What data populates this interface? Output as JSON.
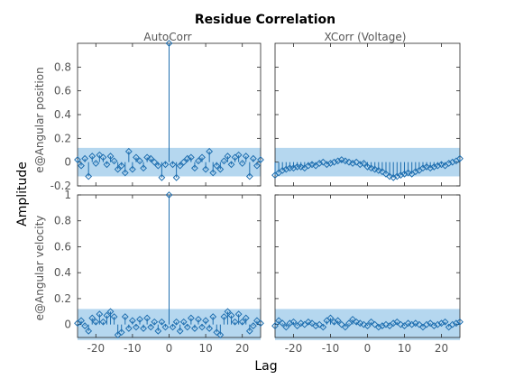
{
  "figure": {
    "title": "Residue Correlation",
    "xlabel": "Lag",
    "ylabel": "Amplitude",
    "column_titles": [
      "AutoCorr",
      "XCorr (Voltage)"
    ],
    "row_labels": [
      "e@Angular position",
      "e@Angular velocity"
    ]
  },
  "colors": {
    "stem": "#1f6fb0",
    "band": "#9ccaea",
    "axis": "#262626",
    "text_gray": "#555555"
  },
  "chart_data": [
    {
      "type": "stem",
      "name": "AutoCorr / e@Angular position",
      "x_range": [
        -25,
        25
      ],
      "y_range": [
        -0.2,
        1.0
      ],
      "xticks": [
        -20,
        -10,
        0,
        10,
        20
      ],
      "yticks": [
        -0.2,
        0,
        0.2,
        0.4,
        0.6,
        0.8
      ],
      "confidence_band": [
        -0.12,
        0.12
      ],
      "x": [
        -25,
        -24,
        -23,
        -22,
        -21,
        -20,
        -19,
        -18,
        -17,
        -16,
        -15,
        -14,
        -13,
        -12,
        -11,
        -10,
        -9,
        -8,
        -7,
        -6,
        -5,
        -4,
        -3,
        -2,
        -1,
        0,
        1,
        2,
        3,
        4,
        5,
        6,
        7,
        8,
        9,
        10,
        11,
        12,
        13,
        14,
        15,
        16,
        17,
        18,
        19,
        20,
        21,
        22,
        23,
        24,
        25
      ],
      "values": [
        0.02,
        -0.03,
        0.03,
        -0.12,
        0.05,
        -0.01,
        0.06,
        0.04,
        -0.02,
        0.05,
        0.01,
        -0.06,
        -0.03,
        -0.09,
        0.09,
        -0.06,
        0.04,
        0.01,
        -0.05,
        0.04,
        0.03,
        0.0,
        -0.03,
        -0.13,
        -0.02,
        1.0,
        -0.02,
        -0.13,
        -0.03,
        0.0,
        0.03,
        0.04,
        -0.05,
        0.01,
        0.04,
        -0.06,
        0.09,
        -0.09,
        -0.03,
        -0.06,
        0.01,
        0.05,
        -0.02,
        0.04,
        0.06,
        -0.01,
        0.05,
        -0.12,
        0.03,
        -0.03,
        0.02
      ]
    },
    {
      "type": "stem",
      "name": "XCorr (Voltage) / e@Angular position",
      "x_range": [
        -25,
        25
      ],
      "y_range": [
        -0.2,
        1.0
      ],
      "xticks": [
        -20,
        -10,
        0,
        10,
        20
      ],
      "yticks": [
        -0.2,
        0,
        0.2,
        0.4,
        0.6,
        0.8
      ],
      "confidence_band": [
        -0.12,
        0.12
      ],
      "x": [
        -25,
        -24,
        -23,
        -22,
        -21,
        -20,
        -19,
        -18,
        -17,
        -16,
        -15,
        -14,
        -13,
        -12,
        -11,
        -10,
        -9,
        -8,
        -7,
        -6,
        -5,
        -4,
        -3,
        -2,
        -1,
        0,
        1,
        2,
        3,
        4,
        5,
        6,
        7,
        8,
        9,
        10,
        11,
        12,
        13,
        14,
        15,
        16,
        17,
        18,
        19,
        20,
        21,
        22,
        23,
        24,
        25
      ],
      "values": [
        -0.11,
        -0.09,
        -0.07,
        -0.06,
        -0.05,
        -0.05,
        -0.04,
        -0.04,
        -0.05,
        -0.03,
        -0.02,
        -0.03,
        -0.01,
        0.0,
        -0.02,
        -0.01,
        0.0,
        0.01,
        0.02,
        0.01,
        0.0,
        -0.01,
        0.0,
        -0.02,
        -0.01,
        -0.04,
        -0.05,
        -0.06,
        -0.07,
        -0.08,
        -0.1,
        -0.12,
        -0.13,
        -0.12,
        -0.11,
        -0.1,
        -0.09,
        -0.1,
        -0.08,
        -0.07,
        -0.05,
        -0.04,
        -0.05,
        -0.04,
        -0.03,
        -0.02,
        -0.03,
        -0.01,
        0.0,
        0.01,
        0.03
      ]
    },
    {
      "type": "stem",
      "name": "AutoCorr / e@Angular velocity",
      "x_range": [
        -25,
        25
      ],
      "y_range": [
        -0.1,
        1.0
      ],
      "xticks": [
        -20,
        -10,
        0,
        10,
        20
      ],
      "yticks": [
        0,
        0.2,
        0.4,
        0.6,
        0.8,
        1
      ],
      "confidence_band": [
        -0.12,
        0.12
      ],
      "x": [
        -25,
        -24,
        -23,
        -22,
        -21,
        -20,
        -19,
        -18,
        -17,
        -16,
        -15,
        -14,
        -13,
        -12,
        -11,
        -10,
        -9,
        -8,
        -7,
        -6,
        -5,
        -4,
        -3,
        -2,
        -1,
        0,
        1,
        2,
        3,
        4,
        5,
        6,
        7,
        8,
        9,
        10,
        11,
        12,
        13,
        14,
        15,
        16,
        17,
        18,
        19,
        20,
        21,
        22,
        23,
        24,
        25
      ],
      "values": [
        0.01,
        0.03,
        -0.01,
        -0.05,
        0.05,
        0.02,
        0.08,
        0.02,
        0.07,
        0.1,
        0.06,
        -0.08,
        -0.06,
        0.06,
        -0.03,
        0.03,
        -0.02,
        0.04,
        -0.03,
        0.05,
        -0.02,
        0.02,
        -0.05,
        0.02,
        -0.02,
        1.0,
        -0.02,
        0.02,
        -0.05,
        0.02,
        -0.02,
        0.05,
        -0.03,
        0.04,
        -0.02,
        0.03,
        -0.03,
        0.06,
        -0.06,
        -0.08,
        0.06,
        0.1,
        0.07,
        0.02,
        0.08,
        0.02,
        0.05,
        -0.05,
        -0.01,
        0.03,
        0.01
      ]
    },
    {
      "type": "stem",
      "name": "XCorr (Voltage) / e@Angular velocity",
      "x_range": [
        -25,
        25
      ],
      "y_range": [
        -0.1,
        1.0
      ],
      "xticks": [
        -20,
        -10,
        0,
        10,
        20
      ],
      "yticks": [
        0,
        0.2,
        0.4,
        0.6,
        0.8,
        1
      ],
      "confidence_band": [
        -0.12,
        0.12
      ],
      "x": [
        -25,
        -24,
        -23,
        -22,
        -21,
        -20,
        -19,
        -18,
        -17,
        -16,
        -15,
        -14,
        -13,
        -12,
        -11,
        -10,
        -9,
        -8,
        -7,
        -6,
        -5,
        -4,
        -3,
        -2,
        -1,
        0,
        1,
        2,
        3,
        4,
        5,
        6,
        7,
        8,
        9,
        10,
        11,
        12,
        13,
        14,
        15,
        16,
        17,
        18,
        19,
        20,
        21,
        22,
        23,
        24,
        25
      ],
      "values": [
        -0.01,
        0.03,
        0.01,
        -0.02,
        0.01,
        0.02,
        -0.01,
        0.01,
        0.0,
        0.02,
        0.01,
        -0.01,
        0.0,
        -0.02,
        0.03,
        0.05,
        0.02,
        0.03,
        0.0,
        -0.02,
        0.01,
        0.04,
        0.02,
        0.01,
        0.0,
        -0.01,
        0.02,
        0.0,
        -0.02,
        -0.01,
        0.0,
        -0.01,
        0.01,
        0.02,
        0.0,
        -0.01,
        0.01,
        0.0,
        0.01,
        0.0,
        -0.02,
        0.0,
        0.01,
        -0.01,
        0.0,
        0.01,
        0.02,
        -0.02,
        0.0,
        0.01,
        0.02
      ]
    }
  ]
}
